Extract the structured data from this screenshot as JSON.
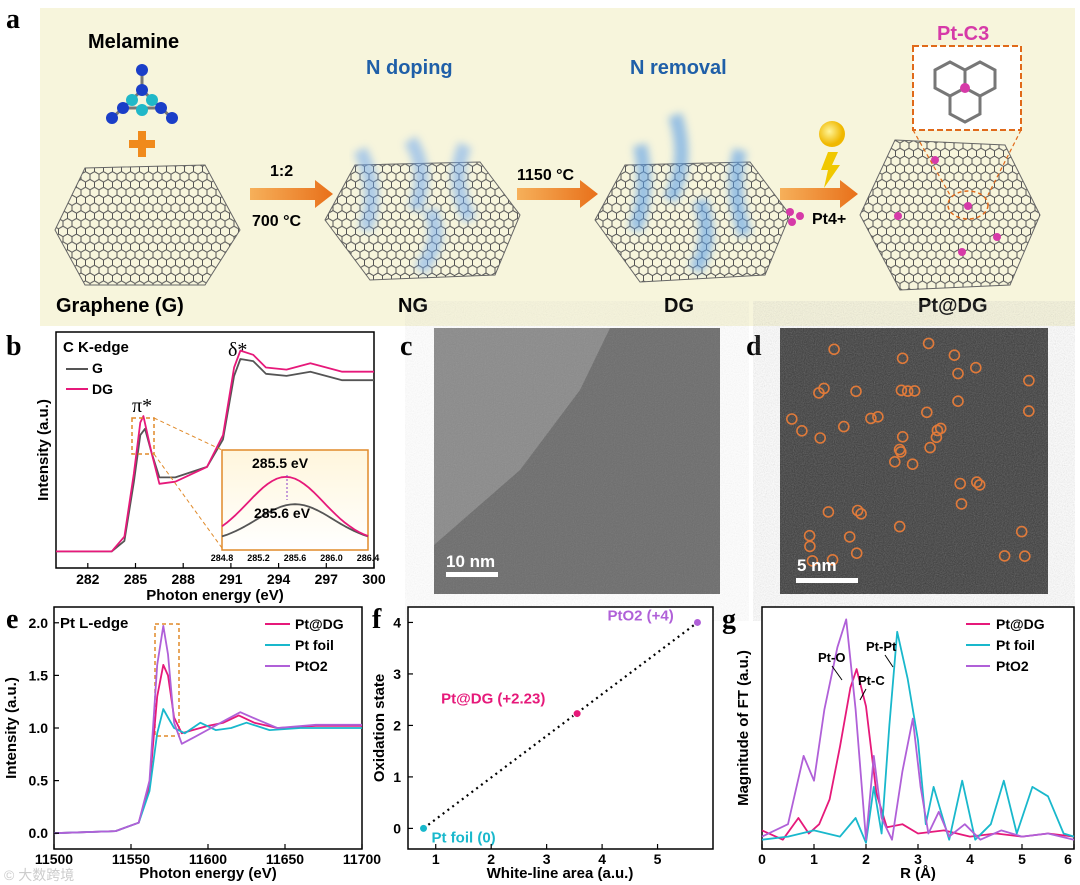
{
  "colors": {
    "dg": "#e6197a",
    "foil": "#19b8cc",
    "pto2": "#b060d8",
    "g": "#555555",
    "panel_a_bg": "#f7f5dc",
    "title_blue": "#1f5fa8",
    "arrow": "#f08a1c",
    "pt_pink": "#d63aa8"
  },
  "panel_a": {
    "letter": "a",
    "melamine": "Melamine",
    "graphene": "Graphene (G)",
    "ratio": "1:2",
    "temp1": "700 °C",
    "n_doping": "N doping",
    "ng": "NG",
    "temp2": "1150 °C",
    "n_removal": "N removal",
    "dg": "DG",
    "pt_ion": "Pt4+",
    "ptdg": "Pt@DG",
    "ptc3": "Pt-C3"
  },
  "panel_c": {
    "letter": "c",
    "scale": "10 nm"
  },
  "panel_d": {
    "letter": "d",
    "scale": "5 nm"
  },
  "watermark": "© 大数跨境",
  "chart_data": [
    {
      "panel": "b",
      "type": "line",
      "title": "C K-edge",
      "xlabel": "Photon energy (eV)",
      "ylabel": "Intensity (a.u.)",
      "xlim": [
        280,
        300
      ],
      "xticks": [
        282,
        285,
        288,
        291,
        294,
        297,
        300
      ],
      "legend": [
        "G",
        "DG"
      ],
      "annotations": [
        "π*",
        "δ*"
      ],
      "inset": {
        "label_dg": "285.5 eV",
        "label_g": "285.6 eV",
        "xticks": [
          "284.8",
          "285.2",
          "285.6",
          "286.0",
          "286.4"
        ]
      },
      "series": [
        {
          "name": "G",
          "x": [
            280,
            283.5,
            284.3,
            284.9,
            285.3,
            285.6,
            286.0,
            286.5,
            287.5,
            289.5,
            290.5,
            291.2,
            291.6,
            292.4,
            293.2,
            294.5,
            296,
            298,
            300
          ],
          "y": [
            0.05,
            0.05,
            0.1,
            0.38,
            0.6,
            0.63,
            0.52,
            0.4,
            0.4,
            0.45,
            0.58,
            0.88,
            0.96,
            0.95,
            0.89,
            0.88,
            0.9,
            0.86,
            0.86
          ]
        },
        {
          "name": "DG",
          "x": [
            280,
            283.5,
            284.3,
            284.9,
            285.3,
            285.5,
            286.0,
            286.5,
            287.5,
            289.5,
            290.5,
            291.2,
            291.6,
            292.4,
            293.2,
            294.5,
            296,
            298,
            300
          ],
          "y": [
            0.05,
            0.05,
            0.12,
            0.42,
            0.66,
            0.69,
            0.52,
            0.37,
            0.38,
            0.45,
            0.6,
            0.92,
            1.0,
            0.98,
            0.92,
            0.91,
            0.94,
            0.9,
            0.9
          ]
        }
      ]
    },
    {
      "panel": "e",
      "type": "line",
      "title": "Pt L-edge",
      "xlabel": "Photon energy (eV)",
      "ylabel": "Intensity (a.u.)",
      "xlim": [
        11500,
        11700
      ],
      "ylim": [
        -0.15,
        2.15
      ],
      "xticks": [
        11500,
        11550,
        11600,
        11650,
        11700
      ],
      "xtick_labels": [
        "11500",
        "11550",
        "11600",
        "11650",
        "11700"
      ],
      "yticks": [
        0.0,
        0.5,
        1.0,
        1.5,
        2.0
      ],
      "ytick_labels": [
        "0.0",
        "0.5",
        "1.0",
        "1.5",
        "2.0"
      ],
      "legend": [
        "Pt@DG",
        "Pt foil",
        "PtO2"
      ],
      "series": [
        {
          "name": "Pt@DG",
          "x": [
            11500,
            11540,
            11555,
            11562,
            11567,
            11571,
            11574,
            11578,
            11583,
            11590,
            11600,
            11610,
            11620,
            11630,
            11645,
            11670,
            11700
          ],
          "y": [
            0,
            0.02,
            0.1,
            0.45,
            1.3,
            1.6,
            1.5,
            1.1,
            0.95,
            0.98,
            1.02,
            1.05,
            1.12,
            1.05,
            1.0,
            1.02,
            1.02
          ]
        },
        {
          "name": "Pt foil",
          "x": [
            11500,
            11540,
            11555,
            11562,
            11567,
            11571,
            11574,
            11578,
            11585,
            11595,
            11605,
            11615,
            11625,
            11640,
            11660,
            11700
          ],
          "y": [
            0,
            0.02,
            0.1,
            0.4,
            0.95,
            1.18,
            1.1,
            1.0,
            0.95,
            1.05,
            0.98,
            1.0,
            1.05,
            0.98,
            1.0,
            1.0
          ]
        },
        {
          "name": "PtO2",
          "x": [
            11500,
            11540,
            11555,
            11562,
            11567,
            11571,
            11574,
            11578,
            11583,
            11592,
            11602,
            11612,
            11621,
            11632,
            11645,
            11670,
            11700
          ],
          "y": [
            0,
            0.02,
            0.1,
            0.5,
            1.6,
            1.97,
            1.7,
            1.05,
            0.85,
            0.92,
            1.0,
            1.08,
            1.15,
            1.08,
            1.0,
            1.03,
            1.03
          ]
        }
      ]
    },
    {
      "panel": "f",
      "type": "scatter",
      "xlabel": "White-line area (a.u.)",
      "ylabel": "Oxidation state",
      "xlim": [
        0.5,
        6
      ],
      "ylim": [
        -0.4,
        4.3
      ],
      "xticks": [
        1,
        2,
        3,
        4,
        5
      ],
      "yticks": [
        0,
        1,
        2,
        3,
        4
      ],
      "points": [
        {
          "name": "Pt foil (0)",
          "x": 0.78,
          "y": 0
        },
        {
          "name": "Pt@DG (+2.23)",
          "x": 3.55,
          "y": 2.23
        },
        {
          "name": "PtO2 (+4)",
          "x": 5.72,
          "y": 4.0
        }
      ],
      "fit_line": {
        "x": [
          0.78,
          5.72
        ],
        "y": [
          0,
          4.0
        ]
      }
    },
    {
      "panel": "g",
      "type": "line",
      "xlabel": "R (Å)",
      "ylabel": "Magnitude of FT (a.u.)",
      "xlim": [
        0,
        6
      ],
      "xticks": [
        0,
        1,
        2,
        3,
        4,
        5,
        6
      ],
      "legend": [
        "Pt@DG",
        "Pt foil",
        "PtO2"
      ],
      "annotations": [
        "Pt-O",
        "Pt-Pt",
        "Pt-C"
      ],
      "series": [
        {
          "name": "Pt@DG",
          "x": [
            0,
            0.4,
            0.7,
            0.9,
            1.1,
            1.3,
            1.5,
            1.7,
            1.82,
            2.0,
            2.2,
            2.4,
            2.7,
            3.0,
            3.5,
            4.0,
            4.5,
            5.0,
            5.5,
            6.0
          ],
          "y": [
            0.06,
            0.03,
            0.1,
            0.05,
            0.08,
            0.16,
            0.33,
            0.52,
            0.58,
            0.46,
            0.18,
            0.07,
            0.08,
            0.05,
            0.06,
            0.04,
            0.05,
            0.04,
            0.05,
            0.04
          ]
        },
        {
          "name": "Pt foil",
          "x": [
            0,
            0.5,
            1.0,
            1.5,
            1.8,
            2.0,
            2.15,
            2.3,
            2.45,
            2.6,
            2.8,
            3.0,
            3.15,
            3.3,
            3.6,
            3.85,
            4.1,
            4.4,
            4.65,
            4.9,
            5.2,
            5.5,
            5.8,
            6.0
          ],
          "y": [
            0.03,
            0.04,
            0.06,
            0.04,
            0.1,
            0.02,
            0.2,
            0.05,
            0.4,
            0.7,
            0.55,
            0.35,
            0.08,
            0.2,
            0.03,
            0.22,
            0.03,
            0.08,
            0.22,
            0.05,
            0.2,
            0.17,
            0.05,
            0.04
          ]
        },
        {
          "name": "PtO2",
          "x": [
            0,
            0.5,
            0.8,
            1.0,
            1.2,
            1.45,
            1.62,
            1.8,
            2.0,
            2.15,
            2.3,
            2.5,
            2.7,
            2.9,
            3.05,
            3.2,
            3.4,
            3.6,
            3.9,
            4.2,
            4.6,
            5.0,
            5.5,
            6.0
          ],
          "y": [
            0.04,
            0.08,
            0.3,
            0.22,
            0.45,
            0.65,
            0.74,
            0.45,
            0.03,
            0.3,
            0.1,
            0.03,
            0.25,
            0.42,
            0.2,
            0.05,
            0.12,
            0.04,
            0.08,
            0.03,
            0.06,
            0.04,
            0.05,
            0.03
          ]
        }
      ]
    }
  ]
}
